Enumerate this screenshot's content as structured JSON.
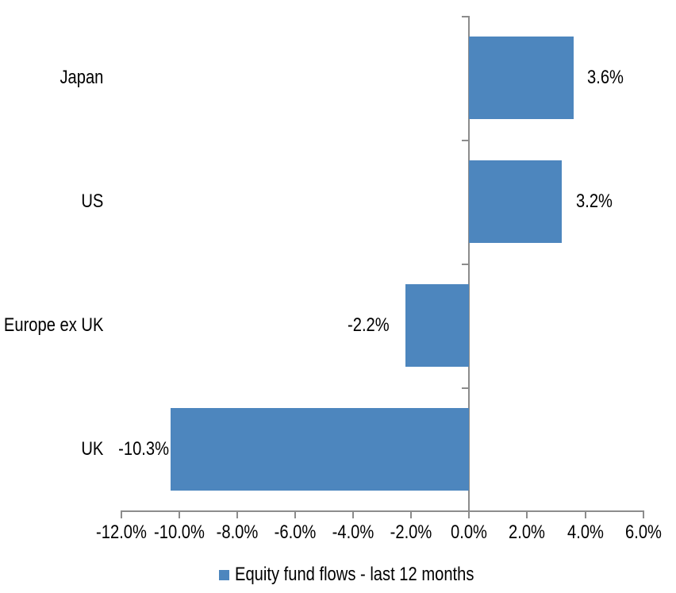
{
  "colors": {
    "bar": "#4D86BE",
    "axis": "#8C8C8C",
    "text": "#000000",
    "background": "#FFFFFF"
  },
  "legend": {
    "label": "Equity fund flows - last 12 months",
    "swatch_color": "#4D86BE"
  },
  "chart_data": {
    "type": "bar",
    "orientation": "horizontal",
    "title": "",
    "categories": [
      "Japan",
      "US",
      "Europe ex UK",
      "UK"
    ],
    "series": [
      {
        "name": "Equity fund flows - last 12 months",
        "values": [
          3.6,
          3.2,
          -2.2,
          -10.3
        ]
      }
    ],
    "data_labels": [
      "3.6%",
      "3.2%",
      "-2.2%",
      "-10.3%"
    ],
    "x_tick_labels": [
      "-12.0%",
      "-10.0%",
      "-8.0%",
      "-6.0%",
      "-4.0%",
      "-2.0%",
      "0.0%",
      "2.0%",
      "4.0%",
      "6.0%"
    ],
    "x_tick_values": [
      -12,
      -10,
      -8,
      -6,
      -4,
      -2,
      0,
      2,
      4,
      6
    ],
    "xlim": [
      -12,
      6
    ],
    "grid": false,
    "legend_position": "bottom"
  }
}
